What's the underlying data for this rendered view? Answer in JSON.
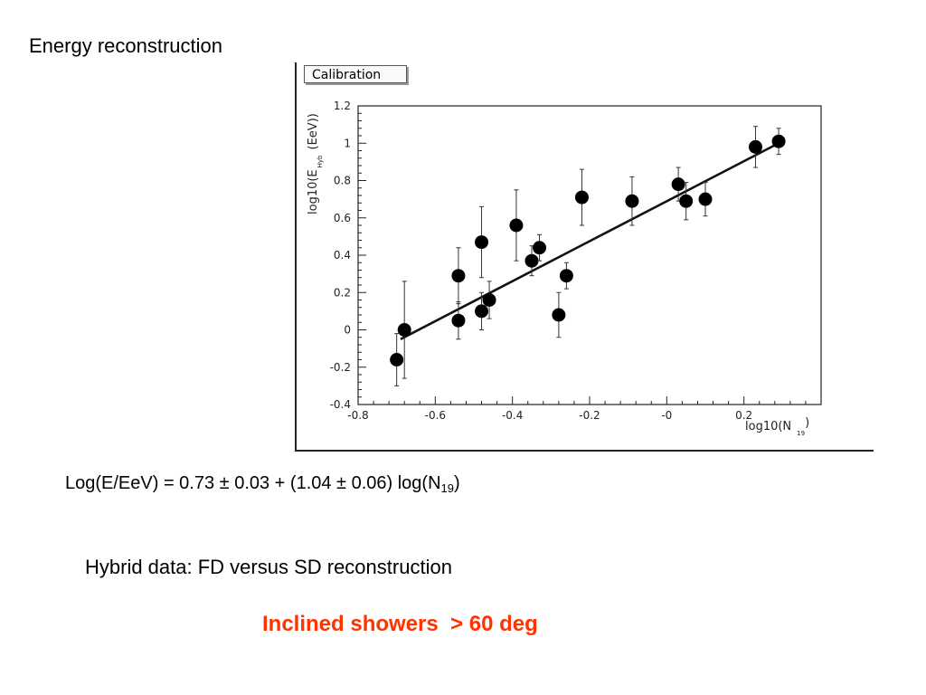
{
  "heading": "Energy reconstruction",
  "formula": {
    "main": "Log(E/EeV) = 0.73 ± 0.03 + (1.04 ± 0.06) log(N",
    "sub": "19",
    "close": ")"
  },
  "caption": "Hybrid data: FD versus SD reconstruction",
  "highlight": {
    "text": "Inclined showers  > 60 deg",
    "color": "#ff3300"
  },
  "chart_data": {
    "type": "scatter",
    "title": "Calibration",
    "xlabel": {
      "main": "log10(N",
      "sub": "19",
      "close": ")"
    },
    "ylabel": {
      "main": "log10(E",
      "sub": "Hyb",
      "close": "(EeV))"
    },
    "xlim": [
      -0.8,
      0.4
    ],
    "ylim": [
      -0.4,
      1.2
    ],
    "xticks": [
      -0.8,
      -0.6,
      -0.4,
      -0.2,
      0,
      0.2
    ],
    "xtick_labels": [
      "-0.8",
      "-0.6",
      "-0.4",
      "-0.2",
      "-0",
      "0.2"
    ],
    "yticks": [
      -0.4,
      -0.2,
      0,
      0.2,
      0.4,
      0.6,
      0.8,
      1.0,
      1.2
    ],
    "ytick_labels": [
      "-0.4",
      "-0.2",
      "0",
      "0.2",
      "0.4",
      "0.6",
      "0.8",
      "1",
      "1.2"
    ],
    "grid": false,
    "points": [
      {
        "x": -0.7,
        "y": -0.16,
        "err": 0.14
      },
      {
        "x": -0.68,
        "y": 0.0,
        "err": 0.26
      },
      {
        "x": -0.54,
        "y": 0.29,
        "err": 0.15
      },
      {
        "x": -0.54,
        "y": 0.05,
        "err": 0.1
      },
      {
        "x": -0.48,
        "y": 0.47,
        "err": 0.19
      },
      {
        "x": -0.48,
        "y": 0.1,
        "err": 0.1
      },
      {
        "x": -0.46,
        "y": 0.16,
        "err": 0.1
      },
      {
        "x": -0.39,
        "y": 0.56,
        "err": 0.19
      },
      {
        "x": -0.35,
        "y": 0.37,
        "err": 0.08
      },
      {
        "x": -0.33,
        "y": 0.44,
        "err": 0.07
      },
      {
        "x": -0.28,
        "y": 0.08,
        "err": 0.12
      },
      {
        "x": -0.26,
        "y": 0.29,
        "err": 0.07
      },
      {
        "x": -0.22,
        "y": 0.71,
        "err": 0.15
      },
      {
        "x": -0.09,
        "y": 0.69,
        "err": 0.13
      },
      {
        "x": 0.03,
        "y": 0.78,
        "err": 0.09
      },
      {
        "x": 0.05,
        "y": 0.69,
        "err": 0.1
      },
      {
        "x": 0.1,
        "y": 0.7,
        "err": 0.09
      },
      {
        "x": 0.23,
        "y": 0.98,
        "err": 0.11
      },
      {
        "x": 0.29,
        "y": 1.01,
        "err": 0.07
      }
    ],
    "fit_line": {
      "x": [
        -0.69,
        0.29
      ],
      "y": [
        -0.05,
        1.0
      ]
    }
  }
}
